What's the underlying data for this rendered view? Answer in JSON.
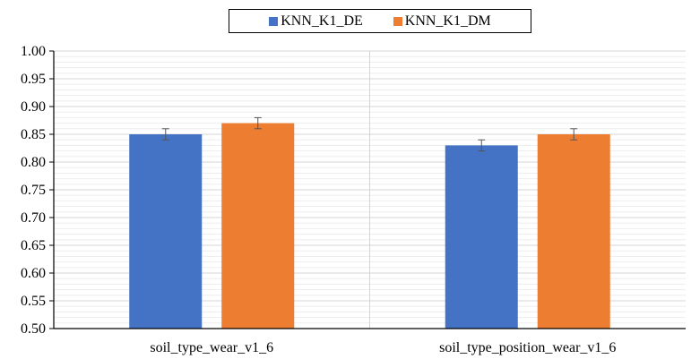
{
  "chart_data": {
    "type": "bar",
    "categories": [
      "soil_type_wear_v1_6",
      "soil_type_position_wear_v1_6"
    ],
    "series": [
      {
        "name": "KNN_K1_DE",
        "values": [
          0.85,
          0.83
        ],
        "errors": [
          0.01,
          0.01
        ],
        "color": "#4472c4"
      },
      {
        "name": "KNN_K1_DM",
        "values": [
          0.87,
          0.85
        ],
        "errors": [
          0.01,
          0.01
        ],
        "color": "#ed7d31"
      }
    ],
    "ylim": [
      0.5,
      1.0
    ],
    "yticks": [
      "0.50",
      "0.55",
      "0.60",
      "0.65",
      "0.70",
      "0.75",
      "0.80",
      "0.85",
      "0.90",
      "0.95",
      "1.00"
    ],
    "grid": true,
    "legend": "top-center"
  }
}
